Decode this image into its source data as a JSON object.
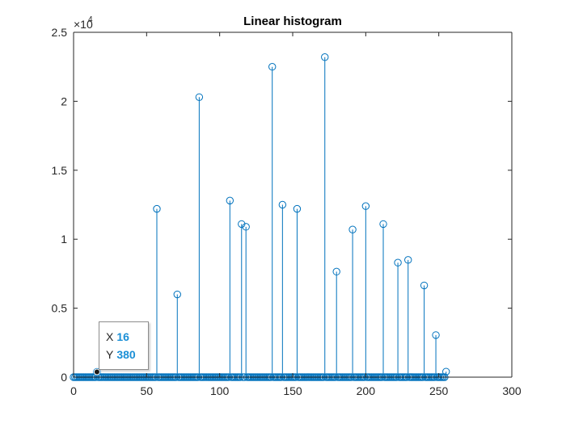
{
  "chart_data": {
    "type": "stem",
    "title": "Linear histogram",
    "xlabel": "",
    "ylabel": "",
    "xlim": [
      0,
      300
    ],
    "ylim": [
      0,
      25000
    ],
    "x_ticks": [
      "0",
      "50",
      "100",
      "150",
      "200",
      "250",
      "300"
    ],
    "y_ticks": [
      "0",
      "0.5",
      "1",
      "1.5",
      "2",
      "2.5"
    ],
    "y_exponent": "4",
    "y_multiplier_label": "×10",
    "grid": false,
    "legend": "none",
    "stem_color": "#0072bd",
    "x": [
      0,
      1,
      2,
      3,
      4,
      5,
      6,
      7,
      8,
      9,
      10,
      11,
      12,
      13,
      14,
      15,
      16,
      17,
      18,
      19,
      20,
      21,
      22,
      23,
      24,
      25,
      26,
      27,
      28,
      29,
      30,
      31,
      32,
      33,
      34,
      35,
      36,
      37,
      38,
      39,
      40,
      41,
      42,
      43,
      44,
      45,
      46,
      47,
      48,
      49,
      50,
      51,
      52,
      53,
      54,
      55,
      56,
      57,
      58,
      59,
      60,
      61,
      62,
      63,
      64,
      65,
      66,
      67,
      68,
      69,
      70,
      71,
      72,
      73,
      74,
      75,
      76,
      77,
      78,
      79,
      80,
      81,
      82,
      83,
      84,
      85,
      86,
      87,
      88,
      89,
      90,
      91,
      92,
      93,
      94,
      95,
      96,
      97,
      98,
      99,
      100,
      101,
      102,
      103,
      104,
      105,
      106,
      107,
      108,
      109,
      110,
      111,
      112,
      113,
      114,
      115,
      116,
      117,
      118,
      119,
      120,
      121,
      122,
      123,
      124,
      125,
      126,
      127,
      128,
      129,
      130,
      131,
      132,
      133,
      134,
      135,
      136,
      137,
      138,
      139,
      140,
      141,
      142,
      143,
      144,
      145,
      146,
      147,
      148,
      149,
      150,
      151,
      152,
      153,
      154,
      155,
      156,
      157,
      158,
      159,
      160,
      161,
      162,
      163,
      164,
      165,
      166,
      167,
      168,
      169,
      170,
      171,
      172,
      173,
      174,
      175,
      176,
      177,
      178,
      179,
      180,
      181,
      182,
      183,
      184,
      185,
      186,
      187,
      188,
      189,
      190,
      191,
      192,
      193,
      194,
      195,
      196,
      197,
      198,
      199,
      200,
      201,
      202,
      203,
      204,
      205,
      206,
      207,
      208,
      209,
      210,
      211,
      212,
      213,
      214,
      215,
      216,
      217,
      218,
      219,
      220,
      221,
      222,
      223,
      224,
      225,
      226,
      227,
      228,
      229,
      230,
      231,
      232,
      233,
      234,
      235,
      236,
      237,
      238,
      239,
      240,
      241,
      242,
      243,
      244,
      245,
      246,
      247,
      248,
      249,
      250,
      251,
      252,
      253,
      254,
      255
    ],
    "nonzero_bins": [
      {
        "x": 16,
        "y": 380
      },
      {
        "x": 57,
        "y": 12200
      },
      {
        "x": 71,
        "y": 6000
      },
      {
        "x": 86,
        "y": 20300
      },
      {
        "x": 107,
        "y": 12800
      },
      {
        "x": 115,
        "y": 11100
      },
      {
        "x": 118,
        "y": 10900
      },
      {
        "x": 136,
        "y": 22500
      },
      {
        "x": 143,
        "y": 12500
      },
      {
        "x": 153,
        "y": 12200
      },
      {
        "x": 172,
        "y": 23200
      },
      {
        "x": 180,
        "y": 7650
      },
      {
        "x": 191,
        "y": 10700
      },
      {
        "x": 200,
        "y": 12400
      },
      {
        "x": 212,
        "y": 11100
      },
      {
        "x": 222,
        "y": 8300
      },
      {
        "x": 229,
        "y": 8500
      },
      {
        "x": 240,
        "y": 6650
      },
      {
        "x": 248,
        "y": 3050
      },
      {
        "x": 255,
        "y": 400
      }
    ]
  },
  "datatip": {
    "x_label": "X",
    "x_value": "16",
    "y_label": "Y",
    "y_value": "380",
    "x": 16,
    "y": 380
  }
}
